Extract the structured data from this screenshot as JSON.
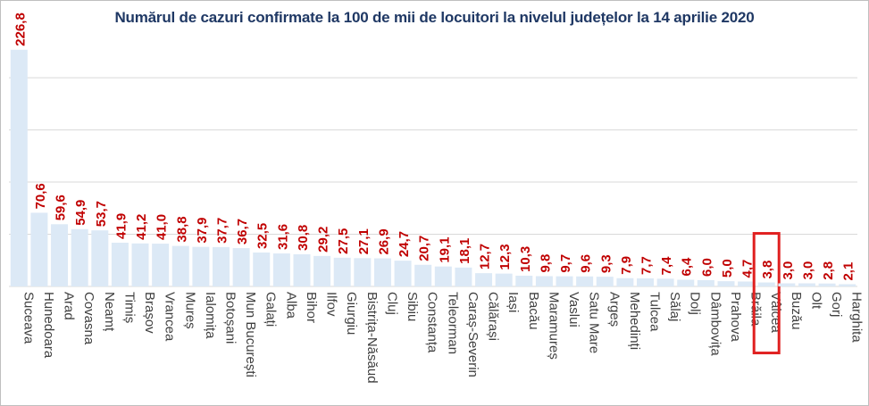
{
  "chart_data": {
    "type": "bar",
    "title": "Numărul de cazuri confirmate la 100 de mii de locuitori la nivelul județelor la 14 aprilie 2020",
    "xlabel": "",
    "ylabel": "",
    "ylim": [
      0,
      230
    ],
    "grid": true,
    "legend": "none",
    "bar_color": "#dce9f6",
    "grid_color": "#d9d9d9",
    "label_color": "#c00000",
    "category_color": "#404040",
    "highlight_color": "#e02020",
    "highlight_category": "Vâlcea",
    "categories": [
      "Suceava",
      "Hunedoara",
      "Arad",
      "Covasna",
      "Neamț",
      "Timiș",
      "Brașov",
      "Vrancea",
      "Mureș",
      "Ialomița",
      "Botoșani",
      "Mun București",
      "Galați",
      "Alba",
      "Bihor",
      "Ilfov",
      "Giurgiu",
      "Bistrița-Năsăud",
      "Cluj",
      "Sibiu",
      "Constanța",
      "Teleorman",
      "Caraș-Severin",
      "Călărași",
      "Iași",
      "Bacău",
      "Maramureș",
      "Vaslui",
      "Satu Mare",
      "Argeș",
      "Mehedinți",
      "Tulcea",
      "Sălaj",
      "Dolj",
      "Dâmbovița",
      "Prahova",
      "Brăila",
      "Vâlcea",
      "Buzău",
      "Olt",
      "Gorj",
      "Harghita"
    ],
    "values": [
      226.8,
      70.6,
      59.6,
      54.9,
      53.7,
      41.9,
      41.2,
      41.0,
      38.8,
      37.9,
      37.7,
      36.7,
      32.5,
      31.6,
      30.8,
      29.2,
      27.5,
      27.1,
      26.9,
      24.7,
      20.7,
      19.1,
      18.1,
      12.7,
      12.3,
      10.3,
      9.8,
      9.7,
      9.6,
      9.3,
      7.9,
      7.7,
      7.4,
      6.4,
      6.0,
      5.0,
      4.7,
      3.8,
      3.0,
      3.0,
      2.8,
      2.1
    ],
    "value_labels": [
      "226,8",
      "70,6",
      "59,6",
      "54,9",
      "53,7",
      "41,9",
      "41,2",
      "41,0",
      "38,8",
      "37,9",
      "37,7",
      "36,7",
      "32,5",
      "31,6",
      "30,8",
      "29,2",
      "27,5",
      "27,1",
      "26,9",
      "24,7",
      "20,7",
      "19,1",
      "18,1",
      "12,7",
      "12,3",
      "10,3",
      "9,8",
      "9,7",
      "9,6",
      "9,3",
      "7,9",
      "7,7",
      "7,4",
      "6,4",
      "6,0",
      "5,0",
      "4,7",
      "3,8",
      "3,0",
      "3,0",
      "2,8",
      "2,1"
    ]
  }
}
